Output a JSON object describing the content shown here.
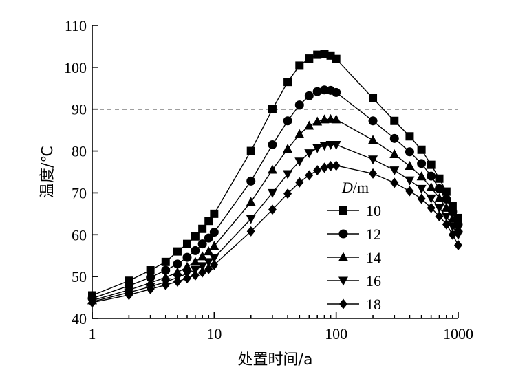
{
  "chart_data": {
    "type": "line",
    "title": "",
    "xlabel": "处置时间/a",
    "ylabel": "温度/℃",
    "x_scale": "log",
    "xlim": [
      1,
      1000
    ],
    "ylim": [
      40,
      110
    ],
    "x_ticks": [
      1,
      10,
      100,
      1000
    ],
    "x_tick_labels": [
      "1",
      "10",
      "100",
      "1000"
    ],
    "y_ticks": [
      40,
      50,
      60,
      70,
      80,
      90,
      100,
      110
    ],
    "y_tick_labels": [
      "40",
      "50",
      "60",
      "70",
      "80",
      "90",
      "100",
      "110"
    ],
    "reference_line": {
      "y": 90,
      "style": "dashed"
    },
    "legend": {
      "title_italic": "D",
      "title_rest": "/m",
      "position": "center-right"
    },
    "series": [
      {
        "name": "10",
        "marker": "square",
        "x": [
          1,
          2,
          3,
          4,
          5,
          6,
          7,
          8,
          9,
          10,
          20,
          30,
          40,
          50,
          60,
          70,
          80,
          90,
          100,
          200,
          300,
          400,
          500,
          600,
          700,
          800,
          900,
          1000
        ],
        "y": [
          45.5,
          49.0,
          51.5,
          53.5,
          56.0,
          57.8,
          59.6,
          61.4,
          63.3,
          65.0,
          80.0,
          90.0,
          96.5,
          100.4,
          102.1,
          103.0,
          103.1,
          102.8,
          102.0,
          92.6,
          87.2,
          83.5,
          80.3,
          76.7,
          73.4,
          70.3,
          66.9,
          64.0
        ]
      },
      {
        "name": "12",
        "marker": "circle",
        "x": [
          1,
          2,
          3,
          4,
          5,
          6,
          7,
          8,
          9,
          10,
          20,
          30,
          40,
          50,
          60,
          70,
          80,
          90,
          100,
          200,
          300,
          400,
          500,
          600,
          700,
          800,
          900,
          1000
        ],
        "y": [
          44.8,
          47.8,
          49.8,
          51.5,
          53.0,
          54.6,
          56.2,
          57.8,
          59.2,
          60.6,
          72.8,
          81.5,
          87.2,
          91.0,
          93.2,
          94.2,
          94.6,
          94.5,
          94.0,
          87.2,
          83.0,
          79.8,
          77.0,
          74.0,
          71.0,
          68.5,
          65.5,
          62.5
        ]
      },
      {
        "name": "14",
        "marker": "triangle-up",
        "x": [
          1,
          2,
          3,
          4,
          5,
          6,
          7,
          8,
          9,
          10,
          20,
          30,
          40,
          50,
          60,
          70,
          80,
          90,
          100,
          200,
          300,
          400,
          500,
          600,
          700,
          800,
          900,
          1000
        ],
        "y": [
          44.3,
          46.8,
          48.5,
          49.8,
          51.0,
          52.3,
          53.5,
          54.8,
          56.0,
          57.3,
          67.8,
          75.5,
          80.5,
          84.0,
          86.0,
          87.0,
          87.5,
          87.6,
          87.5,
          82.6,
          79.2,
          76.4,
          73.9,
          71.3,
          68.7,
          66.4,
          63.8,
          61.4
        ]
      },
      {
        "name": "16",
        "marker": "triangle-down",
        "x": [
          1,
          2,
          3,
          4,
          5,
          6,
          7,
          8,
          9,
          10,
          20,
          30,
          40,
          50,
          60,
          70,
          80,
          90,
          100,
          200,
          300,
          400,
          500,
          600,
          700,
          800,
          900,
          1000
        ],
        "y": [
          44.0,
          46.2,
          47.6,
          48.7,
          49.8,
          50.7,
          51.6,
          52.5,
          53.5,
          54.5,
          63.8,
          70.0,
          74.5,
          77.5,
          79.5,
          80.7,
          81.3,
          81.5,
          81.5,
          78.0,
          75.4,
          73.0,
          71.0,
          68.7,
          66.4,
          64.4,
          62.0,
          60.0
        ]
      },
      {
        "name": "18",
        "marker": "diamond",
        "x": [
          1,
          2,
          3,
          4,
          5,
          6,
          7,
          8,
          9,
          10,
          20,
          30,
          40,
          50,
          60,
          70,
          80,
          90,
          100,
          200,
          300,
          400,
          500,
          600,
          700,
          800,
          900,
          1000
        ],
        "y": [
          43.8,
          45.6,
          47.0,
          48.0,
          48.8,
          49.6,
          50.3,
          51.0,
          51.8,
          52.8,
          60.8,
          66.0,
          69.8,
          72.5,
          74.2,
          75.4,
          76.0,
          76.4,
          76.5,
          74.6,
          72.4,
          70.4,
          68.6,
          66.4,
          64.4,
          62.5,
          60.0,
          57.5
        ]
      }
    ]
  }
}
